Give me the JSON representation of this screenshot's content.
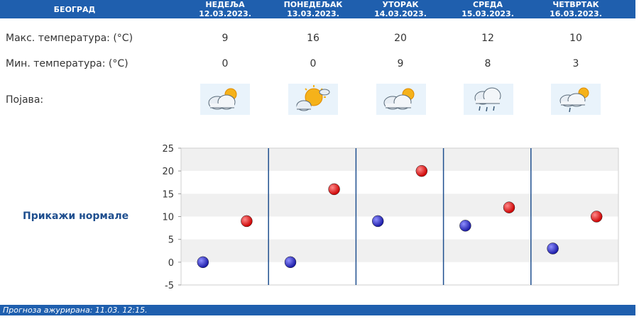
{
  "header": {
    "city": "БЕОГРАД",
    "days": [
      {
        "name": "НЕДЕЉА",
        "date": "12.03.2023."
      },
      {
        "name": "ПОНЕДЕЉАК",
        "date": "13.03.2023."
      },
      {
        "name": "УТОРАК",
        "date": "14.03.2023."
      },
      {
        "name": "СРЕДА",
        "date": "15.03.2023."
      },
      {
        "name": "ЧЕТВРТАК",
        "date": "16.03.2023."
      }
    ]
  },
  "rows": {
    "max_label": "Макс. температура: (°C)",
    "min_label": "Мин. температура: (°C)",
    "phenomenon_label": "Појава:",
    "max_values": [
      "9",
      "16",
      "20",
      "12",
      "10"
    ],
    "min_values": [
      "0",
      "0",
      "9",
      "8",
      "3"
    ],
    "icons": [
      "partly-cloudy-icon",
      "mostly-sunny-icon",
      "partly-cloudy-icon",
      "rain-cloud-icon",
      "partly-cloudy-rain-icon"
    ]
  },
  "normals_link": "Прикажи нормале",
  "colors": {
    "brand": "#1f5fae",
    "max_point": "#cc0000",
    "min_point": "#1a1aa6"
  },
  "chart_data": {
    "type": "scatter",
    "title": "",
    "xlabel": "",
    "ylabel": "",
    "ylim": [
      -5,
      25
    ],
    "y_ticks": [
      "25",
      "20",
      "15",
      "10",
      "5",
      "0",
      "-5"
    ],
    "categories": [
      "12.03.2023.",
      "13.03.2023.",
      "14.03.2023.",
      "15.03.2023.",
      "16.03.2023."
    ],
    "series": [
      {
        "values": [
          0,
          0,
          9,
          8,
          3
        ],
        "color": "#1a1aa6"
      },
      {
        "values": [
          9,
          16,
          20,
          12,
          10
        ],
        "color": "#cc0000"
      }
    ],
    "grid": true
  },
  "footer": {
    "text": "Прогноза ажурирана:  11.03.  12:15."
  }
}
